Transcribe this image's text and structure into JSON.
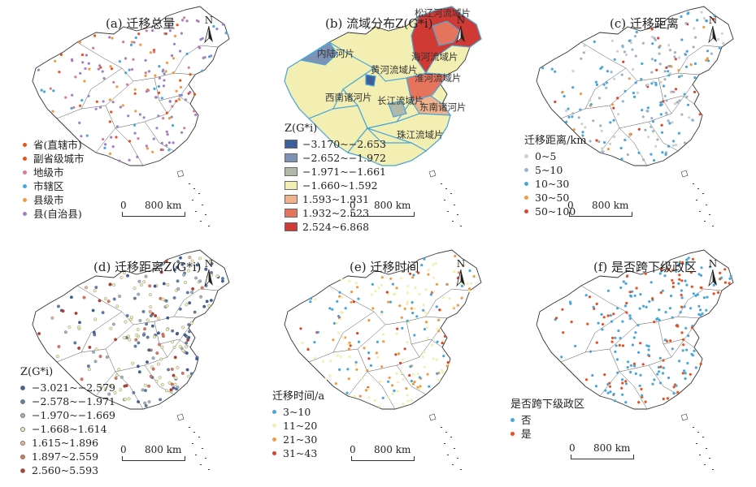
{
  "panels": [
    {
      "id": "a",
      "title": "(a) 迁移总量",
      "legend_title": "",
      "legend": [
        {
          "label": "省(直辖市)",
          "color": "#e8501e"
        },
        {
          "label": "副省级城市",
          "color": "#e8501e"
        },
        {
          "label": "地级市",
          "color": "#d77a9b"
        },
        {
          "label": "市辖区",
          "color": "#4aa6d8"
        },
        {
          "label": "县级市",
          "color": "#ef9a45"
        },
        {
          "label": "县(自治县)",
          "color": "#a37fc2"
        }
      ],
      "scale": {
        "zero": "0",
        "dist": "800 km"
      },
      "north": "N"
    },
    {
      "id": "b",
      "title": "(b) 流域分布Z(G*i)",
      "legend_title": "Z(G*i)",
      "legend": [
        {
          "label": "−3.170~−2.653",
          "color": "#3d5f9e"
        },
        {
          "label": "−2.652~−1.972",
          "color": "#7c93b6"
        },
        {
          "label": "−1.971~−1.661",
          "color": "#b0b8a8"
        },
        {
          "label": "−1.660~1.592",
          "color": "#f3efb2"
        },
        {
          "label": "1.593~1.931",
          "color": "#f0b28d"
        },
        {
          "label": "1.932~2.523",
          "color": "#e6735c"
        },
        {
          "label": "2.524~6.868",
          "color": "#cf3a34"
        }
      ],
      "basins": [
        "松辽河流域片",
        "内陆河片",
        "海河流域片",
        "黄河流域片",
        "淮河流域片",
        "西南诸河片",
        "长江流域片",
        "东南诸河片",
        "珠江流域片"
      ],
      "scale": {
        "zero": "0",
        "dist": "800 km"
      },
      "north": "N"
    },
    {
      "id": "c",
      "title": "(c) 迁移距离",
      "legend_title": "迁移距离/km",
      "legend": [
        {
          "label": "0~5",
          "color": "#cfcfcf"
        },
        {
          "label": "5~10",
          "color": "#9fb3c8"
        },
        {
          "label": "10~30",
          "color": "#4aa6d8"
        },
        {
          "label": "30~50",
          "color": "#ef9a45"
        },
        {
          "label": "50~100",
          "color": "#d9452c"
        }
      ],
      "scale": {
        "zero": "0",
        "dist": "800 km"
      },
      "north": "N"
    },
    {
      "id": "d",
      "title": "(d) 迁移距离Z(G*i)",
      "legend_title": "Z(G*i)",
      "legend": [
        {
          "label": "−3.021~−2.579",
          "color": "#3d5f9e"
        },
        {
          "label": "−2.578~−1.971",
          "color": "#5f7fb0"
        },
        {
          "label": "−1.970~−1.669",
          "color": "#9fb3c8"
        },
        {
          "label": "−1.668~1.614",
          "color": "#f3efb2"
        },
        {
          "label": "1.615~1.896",
          "color": "#f0b28d"
        },
        {
          "label": "1.897~2.559",
          "color": "#e6735c"
        },
        {
          "label": "2.560~5.593",
          "color": "#c0392b"
        }
      ],
      "scale": {
        "zero": "0",
        "dist": "800 km"
      },
      "north": "N"
    },
    {
      "id": "e",
      "title": "(e) 迁移时间",
      "legend_title": "迁移时间/a",
      "legend": [
        {
          "label": "3~10",
          "color": "#4aa6d8"
        },
        {
          "label": "11~20",
          "color": "#f3efb2"
        },
        {
          "label": "21~30",
          "color": "#ef9a45"
        },
        {
          "label": "31~43",
          "color": "#d9452c"
        }
      ],
      "scale": {
        "zero": "0",
        "dist": "800 km"
      },
      "north": "N"
    },
    {
      "id": "f",
      "title": "(f) 是否跨下级政区",
      "legend_title": "是否跨下级政区",
      "legend": [
        {
          "label": "否",
          "color": "#4aa6d8"
        },
        {
          "label": "是",
          "color": "#e8501e"
        }
      ],
      "scale": {
        "zero": "0",
        "dist": "800 km"
      },
      "north": "N"
    }
  ]
}
